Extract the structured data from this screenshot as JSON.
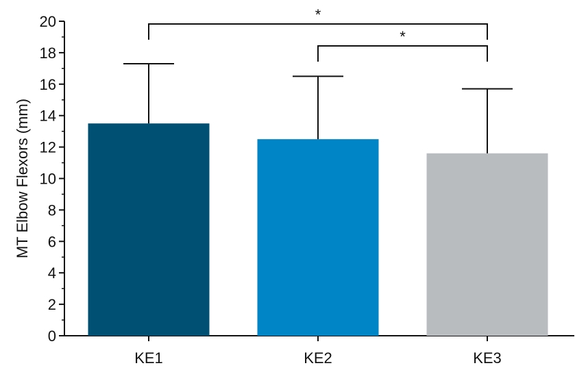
{
  "chart_data": {
    "type": "bar",
    "title": "",
    "xlabel": "",
    "ylabel": "MT Elbow Flexors (mm)",
    "ylim": [
      0,
      20
    ],
    "yticks": [
      0,
      2,
      4,
      6,
      8,
      10,
      12,
      14,
      16,
      18,
      20
    ],
    "categories": [
      "KE1",
      "KE2",
      "KE3"
    ],
    "values": [
      13.5,
      12.5,
      11.6
    ],
    "error_upper": [
      17.3,
      16.5,
      15.7
    ],
    "colors": [
      "#005074",
      "#0086C7",
      "#B8BCBF"
    ],
    "grid": false,
    "legend": "none",
    "significance": [
      {
        "from": "KE1",
        "to": "KE3",
        "label": "*"
      },
      {
        "from": "KE2",
        "to": "KE3",
        "label": "*"
      }
    ]
  }
}
